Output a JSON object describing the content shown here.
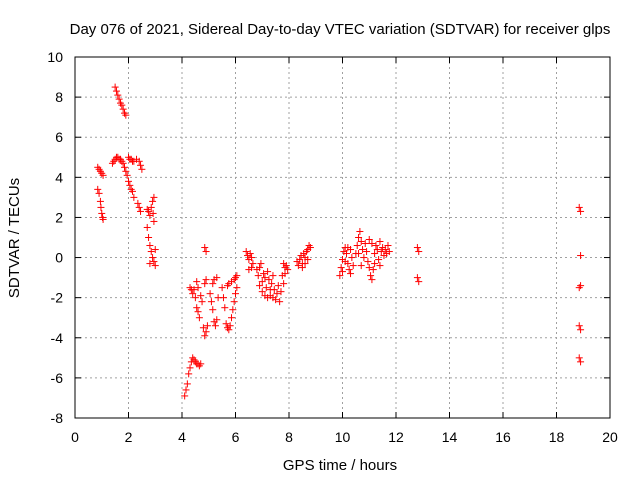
{
  "chart_data": {
    "type": "scatter",
    "title": "Day 076 of 2021, Sidereal Day-to-day VTEC variation (SDTVAR) for receiver glps",
    "xlabel": "GPS time / hours",
    "ylabel": "SDTVAR / TECUs",
    "xlim": [
      0,
      20
    ],
    "ylim": [
      -8,
      10
    ],
    "xticks": [
      0,
      2,
      4,
      6,
      8,
      10,
      12,
      14,
      16,
      18,
      20
    ],
    "yticks": [
      -8,
      -6,
      -4,
      -2,
      0,
      2,
      4,
      6,
      8,
      10
    ],
    "grid": true,
    "marker": "+",
    "color": "#ff0000",
    "series": [
      {
        "name": "glps",
        "points": [
          [
            0.85,
            4.5
          ],
          [
            0.9,
            4.4
          ],
          [
            0.95,
            4.3
          ],
          [
            1.0,
            4.2
          ],
          [
            1.05,
            4.1
          ],
          [
            0.85,
            3.4
          ],
          [
            0.9,
            3.2
          ],
          [
            0.95,
            2.8
          ],
          [
            0.97,
            2.5
          ],
          [
            1.0,
            2.2
          ],
          [
            1.03,
            2.0
          ],
          [
            1.05,
            1.9
          ],
          [
            1.4,
            4.7
          ],
          [
            1.45,
            4.8
          ],
          [
            1.5,
            4.9
          ],
          [
            1.55,
            5.0
          ],
          [
            1.6,
            5.0
          ],
          [
            1.65,
            4.9
          ],
          [
            1.7,
            4.9
          ],
          [
            1.75,
            4.8
          ],
          [
            1.8,
            4.7
          ],
          [
            1.85,
            4.5
          ],
          [
            1.5,
            8.5
          ],
          [
            1.55,
            8.3
          ],
          [
            1.6,
            8.1
          ],
          [
            1.65,
            7.9
          ],
          [
            1.7,
            7.7
          ],
          [
            1.75,
            7.6
          ],
          [
            1.8,
            7.4
          ],
          [
            1.85,
            7.2
          ],
          [
            1.9,
            7.1
          ],
          [
            2.0,
            5.0
          ],
          [
            2.05,
            4.9
          ],
          [
            2.1,
            4.9
          ],
          [
            2.15,
            4.8
          ],
          [
            2.2,
            4.8
          ],
          [
            2.3,
            4.9
          ],
          [
            2.4,
            4.8
          ],
          [
            2.45,
            4.6
          ],
          [
            2.5,
            4.4
          ],
          [
            1.9,
            4.3
          ],
          [
            1.95,
            4.1
          ],
          [
            2.0,
            3.8
          ],
          [
            2.05,
            3.6
          ],
          [
            2.1,
            3.4
          ],
          [
            2.15,
            3.3
          ],
          [
            2.2,
            3.0
          ],
          [
            2.35,
            2.7
          ],
          [
            2.4,
            2.5
          ],
          [
            2.45,
            2.3
          ],
          [
            2.7,
            2.4
          ],
          [
            2.75,
            2.3
          ],
          [
            2.8,
            2.1
          ],
          [
            2.85,
            2.5
          ],
          [
            2.9,
            2.8
          ],
          [
            2.95,
            3.0
          ],
          [
            2.92,
            2.2
          ],
          [
            2.95,
            1.8
          ],
          [
            2.7,
            1.5
          ],
          [
            2.75,
            1.0
          ],
          [
            2.8,
            0.6
          ],
          [
            2.85,
            0.3
          ],
          [
            2.9,
            0.0
          ],
          [
            2.95,
            -0.2
          ],
          [
            3.0,
            0.4
          ],
          [
            3.0,
            -0.4
          ],
          [
            2.8,
            -0.3
          ],
          [
            4.1,
            -6.9
          ],
          [
            4.15,
            -6.6
          ],
          [
            4.2,
            -6.3
          ],
          [
            4.25,
            -5.8
          ],
          [
            4.3,
            -5.5
          ],
          [
            4.35,
            -5.2
          ],
          [
            4.4,
            -5.0
          ],
          [
            4.45,
            -5.1
          ],
          [
            4.5,
            -5.2
          ],
          [
            4.55,
            -5.3
          ],
          [
            4.6,
            -5.3
          ],
          [
            4.65,
            -5.4
          ],
          [
            4.7,
            -5.3
          ],
          [
            4.3,
            -1.5
          ],
          [
            4.35,
            -1.6
          ],
          [
            4.4,
            -1.8
          ],
          [
            4.45,
            -1.6
          ],
          [
            4.5,
            -2.0
          ],
          [
            4.55,
            -2.5
          ],
          [
            4.6,
            -2.7
          ],
          [
            4.65,
            -3.0
          ],
          [
            4.55,
            -1.2
          ],
          [
            4.6,
            -1.5
          ],
          [
            4.7,
            -1.9
          ],
          [
            4.75,
            -2.2
          ],
          [
            4.85,
            0.5
          ],
          [
            4.9,
            0.3
          ],
          [
            4.85,
            -1.3
          ],
          [
            4.9,
            -1.1
          ],
          [
            4.8,
            -3.5
          ],
          [
            4.85,
            -3.9
          ],
          [
            4.9,
            -3.7
          ],
          [
            4.95,
            -3.4
          ],
          [
            5.05,
            -1.8
          ],
          [
            5.1,
            -2.2
          ],
          [
            5.15,
            -2.6
          ],
          [
            5.2,
            -3.2
          ],
          [
            5.25,
            -3.4
          ],
          [
            5.3,
            -3.1
          ],
          [
            5.15,
            -1.3
          ],
          [
            5.2,
            -1.1
          ],
          [
            5.3,
            -1.0
          ],
          [
            5.35,
            -2.0
          ],
          [
            5.5,
            -1.5
          ],
          [
            5.55,
            -2.0
          ],
          [
            5.6,
            -2.5
          ],
          [
            5.65,
            -3.3
          ],
          [
            5.7,
            -3.5
          ],
          [
            5.75,
            -3.6
          ],
          [
            5.8,
            -3.4
          ],
          [
            5.85,
            -3.0
          ],
          [
            5.9,
            -2.6
          ],
          [
            5.95,
            -2.2
          ],
          [
            6.0,
            -1.8
          ],
          [
            6.05,
            -1.5
          ],
          [
            5.7,
            -1.4
          ],
          [
            5.75,
            -1.3
          ],
          [
            5.85,
            -1.2
          ],
          [
            5.95,
            -1.1
          ],
          [
            6.0,
            -1.0
          ],
          [
            6.05,
            -0.9
          ],
          [
            6.4,
            0.3
          ],
          [
            6.45,
            0.1
          ],
          [
            6.5,
            -0.1
          ],
          [
            6.55,
            0.2
          ],
          [
            6.6,
            0.0
          ],
          [
            6.65,
            -0.3
          ],
          [
            6.5,
            -0.6
          ],
          [
            6.6,
            -0.5
          ],
          [
            6.8,
            -0.6
          ],
          [
            6.85,
            -0.9
          ],
          [
            6.9,
            -0.5
          ],
          [
            6.95,
            -0.3
          ],
          [
            7.0,
            -1.2
          ],
          [
            7.05,
            -0.8
          ],
          [
            7.1,
            -1.0
          ],
          [
            7.15,
            -1.5
          ],
          [
            7.2,
            -0.7
          ],
          [
            7.25,
            -1.1
          ],
          [
            7.3,
            -1.9
          ],
          [
            7.35,
            -1.3
          ],
          [
            7.4,
            -0.9
          ],
          [
            7.45,
            -1.6
          ],
          [
            7.5,
            -2.1
          ],
          [
            7.55,
            -1.8
          ],
          [
            7.6,
            -1.4
          ],
          [
            7.65,
            -2.2
          ],
          [
            7.7,
            -1.7
          ],
          [
            7.75,
            -0.9
          ],
          [
            7.8,
            -1.3
          ],
          [
            7.85,
            -0.8
          ],
          [
            7.0,
            -1.7
          ],
          [
            7.1,
            -1.9
          ],
          [
            7.2,
            -2.0
          ],
          [
            7.3,
            -1.6
          ],
          [
            6.9,
            -1.4
          ],
          [
            7.4,
            -2.0
          ],
          [
            7.8,
            -0.3
          ],
          [
            7.85,
            -0.5
          ],
          [
            7.9,
            -0.4
          ],
          [
            7.95,
            -0.6
          ],
          [
            8.3,
            -0.2
          ],
          [
            8.35,
            -0.4
          ],
          [
            8.4,
            -0.1
          ],
          [
            8.45,
            0.1
          ],
          [
            8.5,
            -0.3
          ],
          [
            8.55,
            0.2
          ],
          [
            8.6,
            0.0
          ],
          [
            8.65,
            0.3
          ],
          [
            8.7,
            0.4
          ],
          [
            8.75,
            0.6
          ],
          [
            8.8,
            0.5
          ],
          [
            8.5,
            -0.5
          ],
          [
            8.6,
            -0.3
          ],
          [
            8.7,
            -0.1
          ],
          [
            9.9,
            -0.9
          ],
          [
            9.95,
            -0.5
          ],
          [
            10.0,
            -0.1
          ],
          [
            10.05,
            0.3
          ],
          [
            10.1,
            0.5
          ],
          [
            10.15,
            0.2
          ],
          [
            10.2,
            -0.3
          ],
          [
            10.25,
            -0.6
          ],
          [
            10.3,
            0.4
          ],
          [
            10.35,
            0.0
          ],
          [
            10.4,
            -0.4
          ],
          [
            10.0,
            -0.7
          ],
          [
            10.2,
            0.5
          ],
          [
            10.3,
            -0.8
          ],
          [
            10.1,
            -0.2
          ],
          [
            10.5,
            0.2
          ],
          [
            10.55,
            0.6
          ],
          [
            10.6,
            1.0
          ],
          [
            10.65,
            1.3
          ],
          [
            10.7,
            0.8
          ],
          [
            10.75,
            0.4
          ],
          [
            10.8,
            0.0
          ],
          [
            10.85,
            0.7
          ],
          [
            10.9,
            0.3
          ],
          [
            10.95,
            -0.2
          ],
          [
            11.0,
            -0.5
          ],
          [
            11.05,
            -0.9
          ],
          [
            11.1,
            -1.1
          ],
          [
            11.15,
            -0.6
          ],
          [
            11.2,
            0.2
          ],
          [
            11.25,
            0.6
          ],
          [
            11.3,
            0.4
          ],
          [
            11.35,
            -0.1
          ],
          [
            11.4,
            -0.4
          ],
          [
            11.45,
            0.3
          ],
          [
            11.5,
            0.5
          ],
          [
            11.55,
            0.1
          ],
          [
            11.6,
            0.4
          ],
          [
            11.65,
            0.2
          ],
          [
            11.7,
            0.6
          ],
          [
            11.75,
            0.3
          ],
          [
            11.0,
            0.9
          ],
          [
            11.1,
            0.7
          ],
          [
            11.2,
            -0.3
          ],
          [
            11.4,
            0.8
          ],
          [
            10.7,
            -0.4
          ],
          [
            10.6,
            0.2
          ],
          [
            12.8,
            0.5
          ],
          [
            12.85,
            0.3
          ],
          [
            12.8,
            -1.0
          ],
          [
            12.85,
            -1.2
          ],
          [
            18.85,
            2.5
          ],
          [
            18.9,
            2.3
          ],
          [
            18.9,
            0.1
          ],
          [
            18.85,
            -1.5
          ],
          [
            18.9,
            -1.4
          ],
          [
            18.85,
            -3.4
          ],
          [
            18.9,
            -3.6
          ],
          [
            18.85,
            -5.0
          ],
          [
            18.9,
            -5.2
          ]
        ]
      }
    ]
  }
}
